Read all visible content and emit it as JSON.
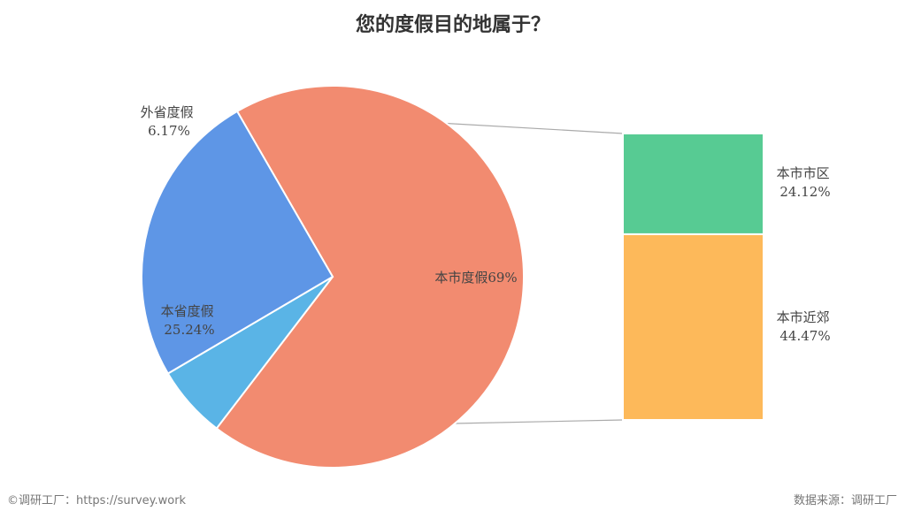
{
  "chart_data": {
    "type": "pie",
    "title": "您的度假目的地属于？",
    "slices": [
      {
        "label": "本市度假",
        "value": 69,
        "value_text": "69%",
        "color": "#f28b70"
      },
      {
        "label": "外省度假",
        "value": 6.17,
        "value_text": "6.17%",
        "color": "#5ab4e6"
      },
      {
        "label": "本省度假",
        "value": 25.24,
        "value_text": "25.24%",
        "color": "#5e96e6"
      }
    ],
    "breakdown": {
      "of": "本市度假",
      "type": "stacked-bar",
      "parts": [
        {
          "label": "本市市区",
          "value": 24.12,
          "value_text": "24.12%",
          "color": "#57cb93"
        },
        {
          "label": "本市近郊",
          "value": 44.47,
          "value_text": "44.47%",
          "color": "#fdb95a"
        }
      ]
    }
  },
  "footer": {
    "left": "©调研工厂：https://survey.work",
    "right": "数据来源：调研工厂"
  }
}
